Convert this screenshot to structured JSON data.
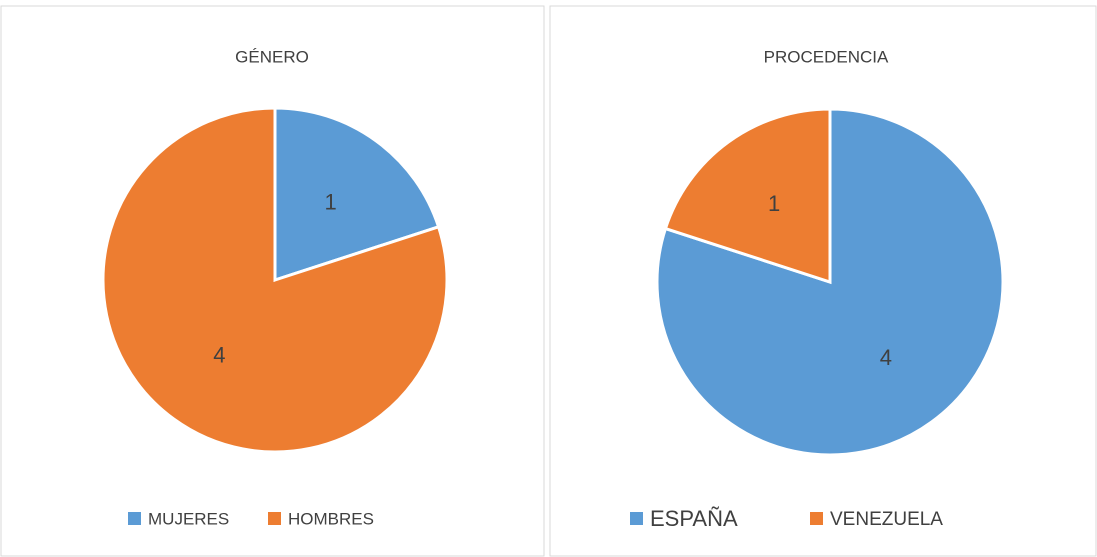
{
  "chart_data": [
    {
      "type": "pie",
      "title": "GÉNERO",
      "categories": [
        "MUJERES",
        "HOMBRES"
      ],
      "values": [
        1,
        4
      ],
      "colors": [
        "#5b9bd5",
        "#ed7d31"
      ]
    },
    {
      "type": "pie",
      "title": "PROCEDENCIA",
      "categories": [
        "ESPAÑA",
        "VENEZUELA"
      ],
      "values": [
        4,
        1
      ],
      "colors": [
        "#5b9bd5",
        "#ed7d31"
      ]
    }
  ]
}
